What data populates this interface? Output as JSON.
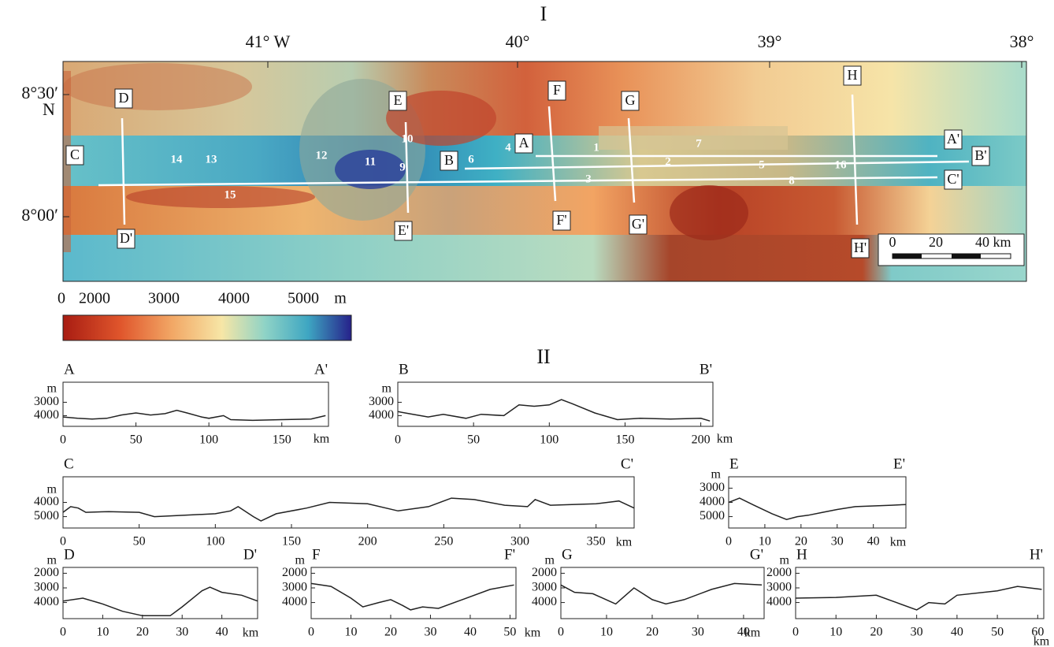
{
  "figure_title": "I",
  "section_title": "II",
  "map": {
    "lon_labels": [
      "41° W",
      "40°",
      "39°",
      "38°"
    ],
    "lat_labels": [
      "8°30′",
      "8°00′"
    ],
    "lat_hemisphere": "N",
    "profiles": [
      {
        "start": "A",
        "end": "A'"
      },
      {
        "start": "B",
        "end": "B'"
      },
      {
        "start": "C",
        "end": "C'"
      },
      {
        "start": "D",
        "end": "D'"
      },
      {
        "start": "E",
        "end": "E'"
      },
      {
        "start": "F",
        "end": "F'"
      },
      {
        "start": "G",
        "end": "G'"
      },
      {
        "start": "H",
        "end": "H'"
      }
    ],
    "feature_labels": [
      "1",
      "2",
      "3",
      "4",
      "5",
      "6",
      "7",
      "8",
      "9",
      "10",
      "11",
      "12",
      "13",
      "14",
      "15",
      "16"
    ],
    "scale_bar": [
      "0",
      "20",
      "40 km"
    ]
  },
  "colorbar": {
    "labels": [
      "0",
      "2000",
      "3000",
      "4000",
      "5000",
      "m"
    ]
  },
  "chart_data": [
    {
      "type": "line",
      "start_label": "A",
      "end_label": "A'",
      "x_label": "km",
      "y_label": "m",
      "color": "#222222",
      "x": [
        0,
        10,
        20,
        30,
        40,
        50,
        60,
        70,
        78,
        85,
        95,
        100,
        110,
        115,
        130,
        150,
        170,
        180
      ],
      "values": [
        4100,
        4200,
        4250,
        4200,
        3950,
        3800,
        3950,
        3850,
        3600,
        3800,
        4100,
        4200,
        4000,
        4300,
        4350,
        4300,
        4250,
        4000
      ],
      "xlim": [
        0,
        182
      ],
      "ylim": [
        4800,
        1500
      ],
      "xticks": [
        0,
        50,
        100,
        150
      ],
      "yticks": [
        3000,
        4000
      ]
    },
    {
      "type": "line",
      "start_label": "B",
      "end_label": "B'",
      "x_label": "km",
      "y_label": "m",
      "color": "#222222",
      "x": [
        0,
        10,
        20,
        30,
        45,
        55,
        70,
        80,
        90,
        100,
        108,
        115,
        130,
        145,
        160,
        180,
        200,
        206
      ],
      "values": [
        3700,
        3900,
        4100,
        3900,
        4200,
        3900,
        4000,
        3200,
        3300,
        3200,
        2800,
        3100,
        3800,
        4300,
        4200,
        4250,
        4200,
        4400
      ],
      "xlim": [
        0,
        208
      ],
      "ylim": [
        4800,
        1500
      ],
      "xticks": [
        0,
        50,
        100,
        150,
        200
      ],
      "yticks": [
        3000,
        4000
      ]
    },
    {
      "type": "line",
      "start_label": "C",
      "end_label": "C'",
      "x_label": "km",
      "y_label": "m",
      "color": "#222222",
      "x": [
        0,
        5,
        10,
        15,
        30,
        50,
        60,
        80,
        100,
        110,
        115,
        125,
        130,
        140,
        160,
        175,
        200,
        220,
        240,
        255,
        270,
        290,
        305,
        310,
        320,
        350,
        365,
        375
      ],
      "values": [
        4700,
        4300,
        4400,
        4700,
        4650,
        4700,
        5000,
        4900,
        4800,
        4600,
        4300,
        5000,
        5300,
        4800,
        4400,
        4000,
        4100,
        4600,
        4300,
        3700,
        3800,
        4200,
        4300,
        3800,
        4200,
        4100,
        3900,
        4400
      ],
      "xlim": [
        0,
        375
      ],
      "ylim": [
        5800,
        2200
      ],
      "xticks": [
        0,
        50,
        100,
        150,
        200,
        250,
        300,
        350
      ],
      "yticks": [
        4000,
        5000
      ]
    },
    {
      "type": "line",
      "start_label": "E",
      "end_label": "E'",
      "x_label": "km",
      "y_label": "m",
      "color": "#222222",
      "x": [
        0,
        3,
        7,
        12,
        16,
        19,
        22,
        26,
        30,
        35,
        45,
        49
      ],
      "values": [
        4000,
        3700,
        4200,
        4800,
        5200,
        5000,
        4900,
        4700,
        4500,
        4300,
        4200,
        4150
      ],
      "xlim": [
        0,
        49
      ],
      "ylim": [
        5800,
        2200
      ],
      "xticks": [
        0,
        10,
        20,
        30,
        40
      ],
      "yticks": [
        3000,
        4000,
        5000
      ]
    },
    {
      "type": "line",
      "start_label": "D",
      "end_label": "D'",
      "x_label": "km",
      "y_label": "m",
      "color": "#222222",
      "x": [
        0,
        5,
        10,
        15,
        20,
        27,
        30,
        35,
        37,
        40,
        45,
        49
      ],
      "values": [
        3900,
        3700,
        4100,
        4600,
        4900,
        4900,
        4300,
        3200,
        2950,
        3300,
        3500,
        3900
      ],
      "xlim": [
        0,
        49
      ],
      "ylim": [
        5100,
        1600
      ],
      "xticks": [
        0,
        10,
        20,
        30,
        40
      ],
      "yticks": [
        2000,
        3000,
        4000
      ]
    },
    {
      "type": "line",
      "start_label": "F",
      "end_label": "F'",
      "x_label": "km",
      "y_label": "m",
      "color": "#222222",
      "x": [
        0,
        5,
        10,
        13,
        17,
        20,
        23,
        25,
        28,
        32,
        38,
        45,
        51
      ],
      "values": [
        2700,
        2900,
        3700,
        4300,
        4000,
        3800,
        4200,
        4500,
        4300,
        4400,
        3800,
        3100,
        2800
      ],
      "xlim": [
        0,
        51.5
      ],
      "ylim": [
        5100,
        1600
      ],
      "xticks": [
        0,
        10,
        20,
        30,
        40,
        50
      ],
      "yticks": [
        2000,
        3000,
        4000
      ]
    },
    {
      "type": "line",
      "start_label": "G",
      "end_label": "G'",
      "x_label": "km",
      "y_label": "m",
      "color": "#222222",
      "x": [
        0,
        3,
        7,
        12,
        16,
        20,
        23,
        27,
        33,
        38,
        44
      ],
      "values": [
        2800,
        3300,
        3400,
        4100,
        3000,
        3800,
        4100,
        3800,
        3100,
        2700,
        2800
      ],
      "xlim": [
        0,
        44.5
      ],
      "ylim": [
        5100,
        1600
      ],
      "xticks": [
        0,
        10,
        20,
        30,
        40
      ],
      "yticks": [
        2000,
        3000,
        4000
      ]
    },
    {
      "type": "line",
      "start_label": "H",
      "end_label": "H'",
      "x_label": "km",
      "y_label": "m",
      "color": "#222222",
      "x": [
        0,
        10,
        20,
        25,
        30,
        33,
        37,
        40,
        50,
        55,
        61
      ],
      "values": [
        3700,
        3650,
        3500,
        4000,
        4500,
        4000,
        4100,
        3500,
        3200,
        2900,
        3100
      ],
      "xlim": [
        0,
        61.5
      ],
      "ylim": [
        5100,
        1600
      ],
      "xticks": [
        0,
        10,
        20,
        30,
        40,
        50,
        60
      ],
      "yticks": [
        2000,
        3000,
        4000
      ]
    }
  ]
}
